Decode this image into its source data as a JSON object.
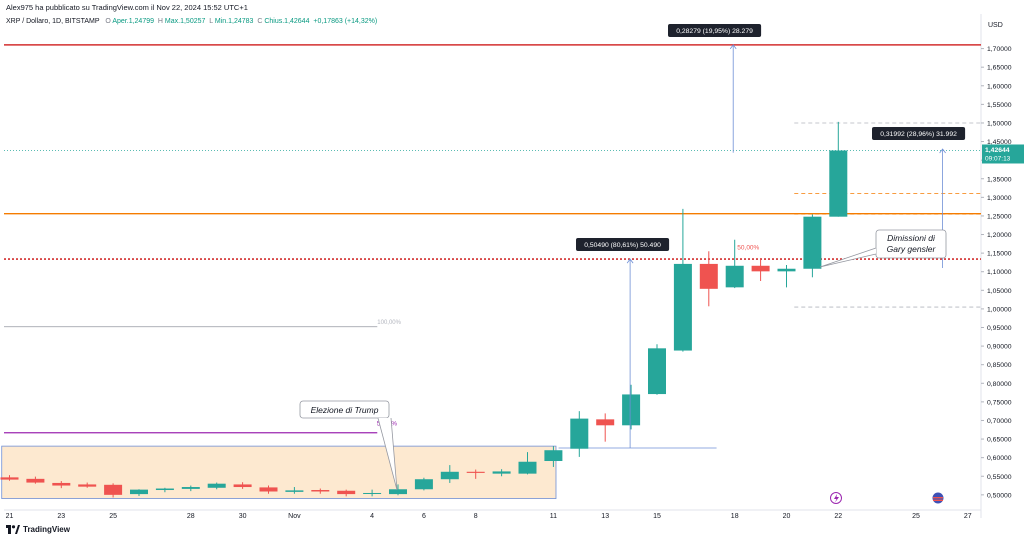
{
  "header": {
    "published_by": "Alex975 ha pubblicato su TradingView.com il Nov 22, 2024 15:52 UTC+1",
    "symbol": "XRP / Dollaro, 1D, BITSTAMP",
    "o_label": "O",
    "o_value": "Aper.1,24799",
    "h_label": "H",
    "h_value": "Max.1,50257",
    "l_label": "L",
    "l_value": "Min.1,24783",
    "c_label": "C",
    "c_value": "Chius.1,42644",
    "change": "+0,17863 (+14,32%)"
  },
  "footer": {
    "brand": "TradingView"
  },
  "colors": {
    "up": "#26a69a",
    "down": "#ef5350",
    "red_line": "#d32f2f",
    "orange_line": "#f57c00",
    "purple_line": "#9c27b0",
    "box_fill": "#fde9d0",
    "box_border": "#6f8fd6",
    "measure": "#6f8fd6",
    "price_tag": "#26a69a"
  },
  "chart_data": {
    "type": "candlestick",
    "currency_label": "USD",
    "ylim": [
      0.47,
      1.75
    ],
    "yticks": [
      "0,50000",
      "0,55000",
      "0,60000",
      "0,65000",
      "0,70000",
      "0,75000",
      "0,80000",
      "0,85000",
      "0,90000",
      "0,95000",
      "1,00000",
      "1,05000",
      "1,10000",
      "1,15000",
      "1,20000",
      "1,25000",
      "1,30000",
      "1,35000",
      "1,40000",
      "1,45000",
      "1,50000",
      "1,55000",
      "1,60000",
      "1,65000",
      "1,70000"
    ],
    "xticks": [
      {
        "label": "21",
        "i": 0
      },
      {
        "label": "23",
        "i": 2
      },
      {
        "label": "25",
        "i": 4
      },
      {
        "label": "28",
        "i": 7
      },
      {
        "label": "30",
        "i": 9
      },
      {
        "label": "Nov",
        "i": 11
      },
      {
        "label": "4",
        "i": 14
      },
      {
        "label": "6",
        "i": 16
      },
      {
        "label": "8",
        "i": 18
      },
      {
        "label": "11",
        "i": 21
      },
      {
        "label": "13",
        "i": 23
      },
      {
        "label": "15",
        "i": 25
      },
      {
        "label": "18",
        "i": 28
      },
      {
        "label": "20",
        "i": 30
      },
      {
        "label": "22",
        "i": 32
      },
      {
        "label": "25",
        "i": 35
      },
      {
        "label": "27",
        "i": 37
      }
    ],
    "candles": [
      {
        "o": 0.547,
        "h": 0.553,
        "l": 0.538,
        "c": 0.541
      },
      {
        "o": 0.543,
        "h": 0.549,
        "l": 0.53,
        "c": 0.533
      },
      {
        "o": 0.532,
        "h": 0.537,
        "l": 0.518,
        "c": 0.525
      },
      {
        "o": 0.528,
        "h": 0.533,
        "l": 0.519,
        "c": 0.522
      },
      {
        "o": 0.527,
        "h": 0.531,
        "l": 0.493,
        "c": 0.5
      },
      {
        "o": 0.502,
        "h": 0.515,
        "l": 0.497,
        "c": 0.514
      },
      {
        "o": 0.513,
        "h": 0.519,
        "l": 0.507,
        "c": 0.517
      },
      {
        "o": 0.516,
        "h": 0.525,
        "l": 0.51,
        "c": 0.521
      },
      {
        "o": 0.519,
        "h": 0.533,
        "l": 0.515,
        "c": 0.53
      },
      {
        "o": 0.528,
        "h": 0.534,
        "l": 0.516,
        "c": 0.521
      },
      {
        "o": 0.52,
        "h": 0.525,
        "l": 0.503,
        "c": 0.509
      },
      {
        "o": 0.508,
        "h": 0.521,
        "l": 0.503,
        "c": 0.512
      },
      {
        "o": 0.513,
        "h": 0.517,
        "l": 0.503,
        "c": 0.509
      },
      {
        "o": 0.511,
        "h": 0.514,
        "l": 0.496,
        "c": 0.502
      },
      {
        "o": 0.503,
        "h": 0.514,
        "l": 0.496,
        "c": 0.505
      },
      {
        "o": 0.502,
        "h": 0.528,
        "l": 0.499,
        "c": 0.515
      },
      {
        "o": 0.515,
        "h": 0.546,
        "l": 0.512,
        "c": 0.542
      },
      {
        "o": 0.542,
        "h": 0.58,
        "l": 0.532,
        "c": 0.562
      },
      {
        "o": 0.562,
        "h": 0.568,
        "l": 0.543,
        "c": 0.559
      },
      {
        "o": 0.557,
        "h": 0.569,
        "l": 0.55,
        "c": 0.563
      },
      {
        "o": 0.557,
        "h": 0.615,
        "l": 0.555,
        "c": 0.589
      },
      {
        "o": 0.591,
        "h": 0.631,
        "l": 0.575,
        "c": 0.62
      },
      {
        "o": 0.624,
        "h": 0.725,
        "l": 0.602,
        "c": 0.705
      },
      {
        "o": 0.703,
        "h": 0.719,
        "l": 0.643,
        "c": 0.687
      },
      {
        "o": 0.687,
        "h": 0.796,
        "l": 0.676,
        "c": 0.77
      },
      {
        "o": 0.771,
        "h": 0.905,
        "l": 0.769,
        "c": 0.894
      },
      {
        "o": 0.888,
        "h": 1.269,
        "l": 0.885,
        "c": 1.121
      },
      {
        "o": 1.121,
        "h": 1.155,
        "l": 1.007,
        "c": 1.054
      },
      {
        "o": 1.058,
        "h": 1.186,
        "l": 1.056,
        "c": 1.116
      },
      {
        "o": 1.116,
        "h": 1.134,
        "l": 1.075,
        "c": 1.101
      },
      {
        "o": 1.101,
        "h": 1.118,
        "l": 1.058,
        "c": 1.108
      },
      {
        "o": 1.108,
        "h": 1.254,
        "l": 1.085,
        "c": 1.248
      },
      {
        "o": 1.248,
        "h": 1.503,
        "l": 1.248,
        "c": 1.426
      }
    ],
    "hlines": [
      {
        "y": 1.71,
        "color": "red_line",
        "style": "solid"
      },
      {
        "y": 1.256,
        "color": "orange_line",
        "style": "solid"
      },
      {
        "y": 1.134,
        "color": "red_line",
        "style": "dotted"
      },
      {
        "y": 1.426,
        "color": "price_tag",
        "style": "dotted"
      }
    ],
    "last_price": {
      "value": "1,42644",
      "countdown": "09:07:13",
      "y": 1.426
    },
    "measures": [
      {
        "label": "0,28279 (19,95%) 28.279",
        "i": 28,
        "y0": 1.42,
        "y1": 1.71
      },
      {
        "label": "0,31992 (28,96%) 31.992",
        "i": 36,
        "y0": 1.11,
        "y1": 1.43
      },
      {
        "label": "0,50490 (80,61%) 50.490",
        "i": 24,
        "y0": 0.626,
        "y1": 1.134
      }
    ],
    "box": {
      "i0": -0.3,
      "i1": 21.1,
      "y0": 0.49,
      "y1": 0.631
    },
    "purple_line": {
      "y": 0.667,
      "label": "50,0 %"
    },
    "grey_line": {
      "y": 0.952,
      "label": "100,00%"
    },
    "fib_label": {
      "text": "50,00%"
    },
    "annotations": [
      {
        "text": "Elezione di Trump",
        "lines": [
          "Elezione di Trump"
        ]
      },
      {
        "text": "Dimissioni di Gary gensler",
        "lines": [
          "Dimissioni di",
          "Gary gensler"
        ]
      }
    ]
  }
}
